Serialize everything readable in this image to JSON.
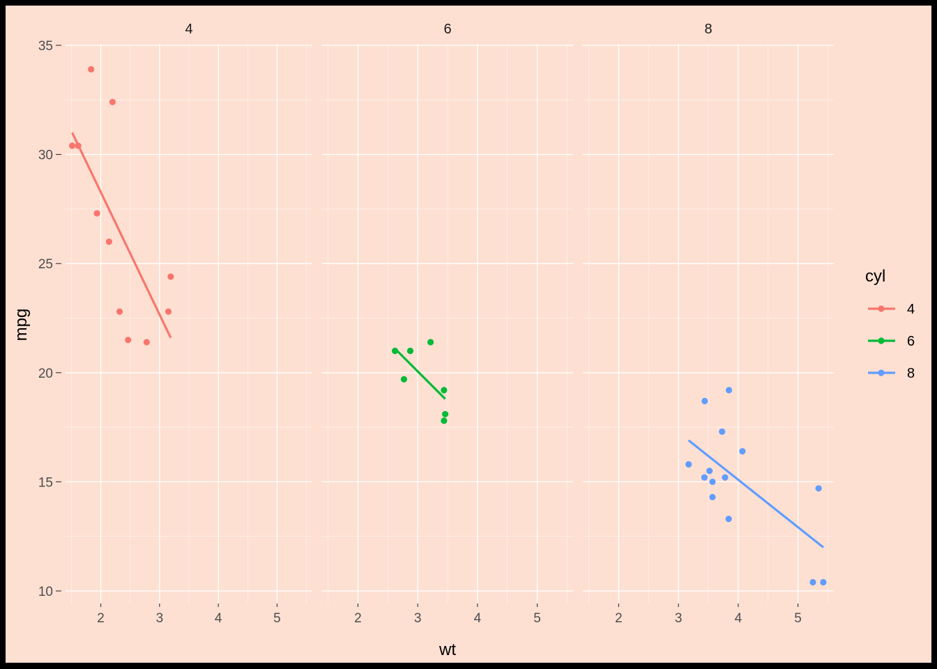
{
  "chart_data": {
    "type": "scatter",
    "facet_var": "cyl",
    "xlabel": "wt",
    "ylabel": "mpg",
    "xlim": [
      1.4,
      5.6
    ],
    "ylim": [
      9.4,
      35.4
    ],
    "x_ticks": [
      2,
      3,
      4,
      5
    ],
    "y_ticks": [
      10,
      15,
      20,
      25,
      30,
      35
    ],
    "grid": true,
    "legend": {
      "title": "cyl",
      "position": "right"
    },
    "series": [
      {
        "name": "4",
        "color": "#f8766d",
        "points": [
          [
            1.513,
            30.4
          ],
          [
            1.615,
            30.4
          ],
          [
            1.835,
            33.9
          ],
          [
            1.935,
            27.3
          ],
          [
            2.14,
            26.0
          ],
          [
            2.2,
            32.4
          ],
          [
            2.32,
            22.8
          ],
          [
            2.465,
            21.5
          ],
          [
            2.78,
            21.4
          ],
          [
            3.15,
            22.8
          ],
          [
            3.19,
            24.4
          ]
        ],
        "fit": [
          [
            1.513,
            31.0
          ],
          [
            3.19,
            21.6
          ]
        ]
      },
      {
        "name": "6",
        "color": "#00ba38",
        "points": [
          [
            2.62,
            21.0
          ],
          [
            2.77,
            19.7
          ],
          [
            2.875,
            21.0
          ],
          [
            3.215,
            21.4
          ],
          [
            3.44,
            19.2
          ],
          [
            3.44,
            17.8
          ],
          [
            3.46,
            18.1
          ]
        ],
        "fit": [
          [
            2.62,
            21.1
          ],
          [
            3.46,
            18.8
          ]
        ]
      },
      {
        "name": "8",
        "color": "#619cff",
        "points": [
          [
            3.17,
            15.8
          ],
          [
            3.435,
            15.2
          ],
          [
            3.44,
            18.7
          ],
          [
            3.52,
            15.5
          ],
          [
            3.57,
            15.0
          ],
          [
            3.57,
            14.3
          ],
          [
            3.73,
            17.3
          ],
          [
            3.78,
            15.2
          ],
          [
            3.84,
            13.3
          ],
          [
            3.845,
            19.2
          ],
          [
            4.07,
            16.4
          ],
          [
            5.25,
            10.4
          ],
          [
            5.345,
            14.7
          ],
          [
            5.424,
            10.4
          ]
        ],
        "fit": [
          [
            3.17,
            16.9
          ],
          [
            5.424,
            12.0
          ]
        ]
      }
    ]
  }
}
